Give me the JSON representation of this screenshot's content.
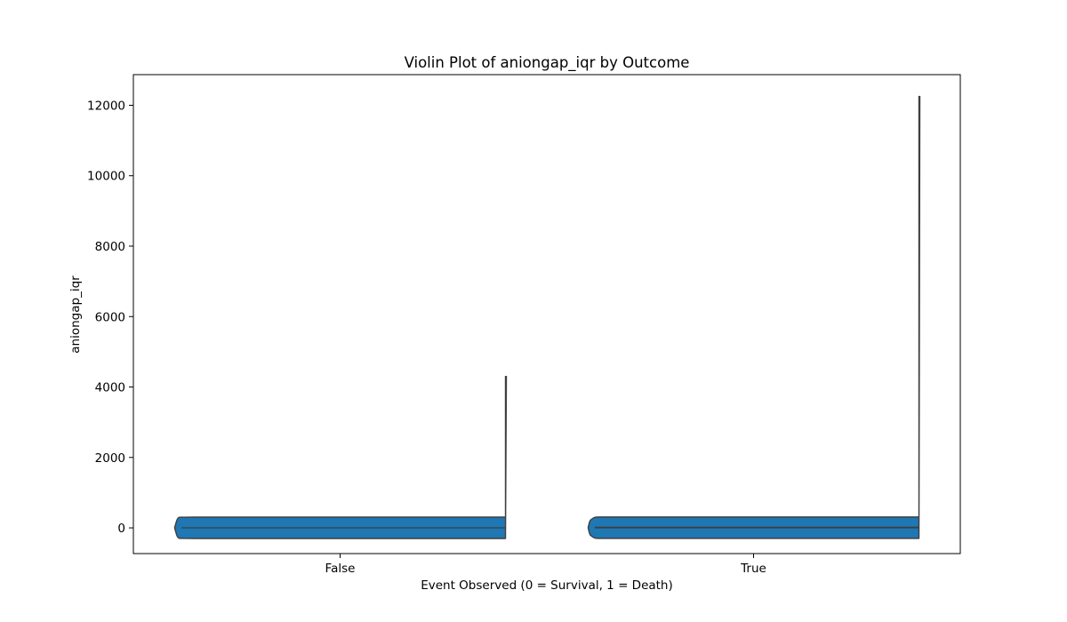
{
  "chart_data": {
    "type": "violin",
    "title": "Violin Plot of aniongap_iqr by Outcome",
    "xlabel": "Event Observed (0 = Survival, 1 = Death)",
    "ylabel": "aniongap_iqr",
    "categories": [
      "False",
      "True"
    ],
    "ylim": [
      -730,
      12870
    ],
    "yticks": [
      0,
      2000,
      4000,
      6000,
      8000,
      10000,
      12000
    ],
    "grid": false,
    "colors": {
      "fill": "#1f77b4",
      "edge": "#3f3f3f"
    },
    "violins": [
      {
        "category": "False",
        "min": 0,
        "max": 4300,
        "quartiles": [
          0,
          2,
          6
        ],
        "density": [
          [
            0,
            0.0
          ],
          [
            10,
            0.3
          ],
          [
            20,
            0.55
          ],
          [
            30,
            0.75
          ],
          [
            40,
            0.88
          ],
          [
            50,
            0.95
          ],
          [
            60,
            0.985
          ],
          [
            80,
            0.992
          ],
          [
            100,
            0.996
          ],
          [
            150,
            0.998
          ],
          [
            250,
            1.0
          ],
          [
            500,
            1.0
          ],
          [
            1000,
            1.0
          ],
          [
            2000,
            1.0
          ],
          [
            3000,
            1.0
          ],
          [
            4300,
            1.0
          ]
        ]
      },
      {
        "category": "True",
        "min": 0,
        "max": 12250,
        "quartiles": [
          0,
          5,
          20
        ],
        "density": [
          [
            0,
            0.0
          ],
          [
            20,
            0.25
          ],
          [
            40,
            0.45
          ],
          [
            60,
            0.6
          ],
          [
            80,
            0.7
          ],
          [
            100,
            0.74
          ],
          [
            120,
            0.78
          ],
          [
            150,
            0.84
          ],
          [
            200,
            0.92
          ],
          [
            250,
            0.97
          ],
          [
            300,
            0.99
          ],
          [
            400,
            1.0
          ],
          [
            600,
            1.0
          ],
          [
            1000,
            1.0
          ],
          [
            2000,
            1.0
          ],
          [
            4000,
            1.0
          ],
          [
            6000,
            1.0
          ],
          [
            8000,
            1.0
          ],
          [
            10000,
            1.0
          ],
          [
            12250,
            1.0
          ]
        ]
      }
    ]
  }
}
